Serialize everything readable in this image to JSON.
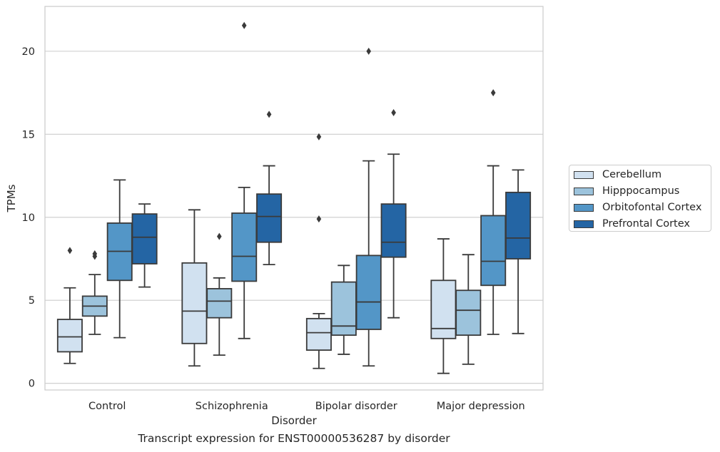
{
  "caption": "Transcript expression for ENST00000536287 by disorder",
  "chart_data": {
    "type": "box",
    "xlabel": "Disorder",
    "ylabel": "TPMs",
    "ylim": [
      -0.4,
      22.7
    ],
    "yticks": [
      0,
      5,
      10,
      15,
      20
    ],
    "grid": true,
    "legend_position": "right",
    "categories": [
      "Control",
      "Schizophrenia",
      "Bipolar disorder",
      "Major depression"
    ],
    "series": [
      {
        "name": "Cerebellum",
        "color": "#d1e1f0",
        "boxes": [
          {
            "whislo": 1.2,
            "q1": 1.9,
            "med": 2.8,
            "q3": 3.85,
            "whishi": 5.75,
            "fliers": [
              8.0
            ]
          },
          {
            "whislo": 1.05,
            "q1": 2.4,
            "med": 4.35,
            "q3": 7.25,
            "whishi": 10.45,
            "fliers": []
          },
          {
            "whislo": 0.9,
            "q1": 2.0,
            "med": 3.05,
            "q3": 3.9,
            "whishi": 4.2,
            "fliers": [
              9.9,
              14.85
            ]
          },
          {
            "whislo": 0.6,
            "q1": 2.7,
            "med": 3.3,
            "q3": 6.2,
            "whishi": 8.7,
            "fliers": []
          }
        ]
      },
      {
        "name": "Hipppocampus",
        "color": "#9cc3dc",
        "boxes": [
          {
            "whislo": 2.95,
            "q1": 4.05,
            "med": 4.65,
            "q3": 5.25,
            "whishi": 6.55,
            "fliers": [
              7.65,
              7.8
            ]
          },
          {
            "whislo": 1.7,
            "q1": 3.95,
            "med": 4.95,
            "q3": 5.7,
            "whishi": 6.35,
            "fliers": [
              8.85
            ]
          },
          {
            "whislo": 1.75,
            "q1": 2.9,
            "med": 3.45,
            "q3": 6.1,
            "whishi": 7.1,
            "fliers": []
          },
          {
            "whislo": 1.15,
            "q1": 2.9,
            "med": 4.4,
            "q3": 5.6,
            "whishi": 7.75,
            "fliers": []
          }
        ]
      },
      {
        "name": "Orbitofontal Cortex",
        "color": "#5396c7",
        "boxes": [
          {
            "whislo": 2.75,
            "q1": 6.2,
            "med": 7.95,
            "q3": 9.65,
            "whishi": 12.25,
            "fliers": []
          },
          {
            "whislo": 2.7,
            "q1": 6.15,
            "med": 7.65,
            "q3": 10.25,
            "whishi": 11.8,
            "fliers": [
              21.55
            ]
          },
          {
            "whislo": 1.05,
            "q1": 3.25,
            "med": 4.9,
            "q3": 7.7,
            "whishi": 13.4,
            "fliers": [
              20.0
            ]
          },
          {
            "whislo": 2.95,
            "q1": 5.9,
            "med": 7.35,
            "q3": 10.1,
            "whishi": 13.1,
            "fliers": [
              17.5
            ]
          }
        ]
      },
      {
        "name": "Prefrontal Cortex",
        "color": "#2465a4",
        "boxes": [
          {
            "whislo": 5.8,
            "q1": 7.2,
            "med": 8.8,
            "q3": 10.2,
            "whishi": 10.8,
            "fliers": []
          },
          {
            "whislo": 7.15,
            "q1": 8.5,
            "med": 10.05,
            "q3": 11.4,
            "whishi": 13.1,
            "fliers": [
              16.2
            ]
          },
          {
            "whislo": 3.95,
            "q1": 7.6,
            "med": 8.5,
            "q3": 10.8,
            "whishi": 13.8,
            "fliers": [
              16.3
            ]
          },
          {
            "whislo": 3.0,
            "q1": 7.5,
            "med": 8.75,
            "q3": 11.5,
            "whishi": 12.85,
            "fliers": []
          }
        ]
      }
    ]
  }
}
